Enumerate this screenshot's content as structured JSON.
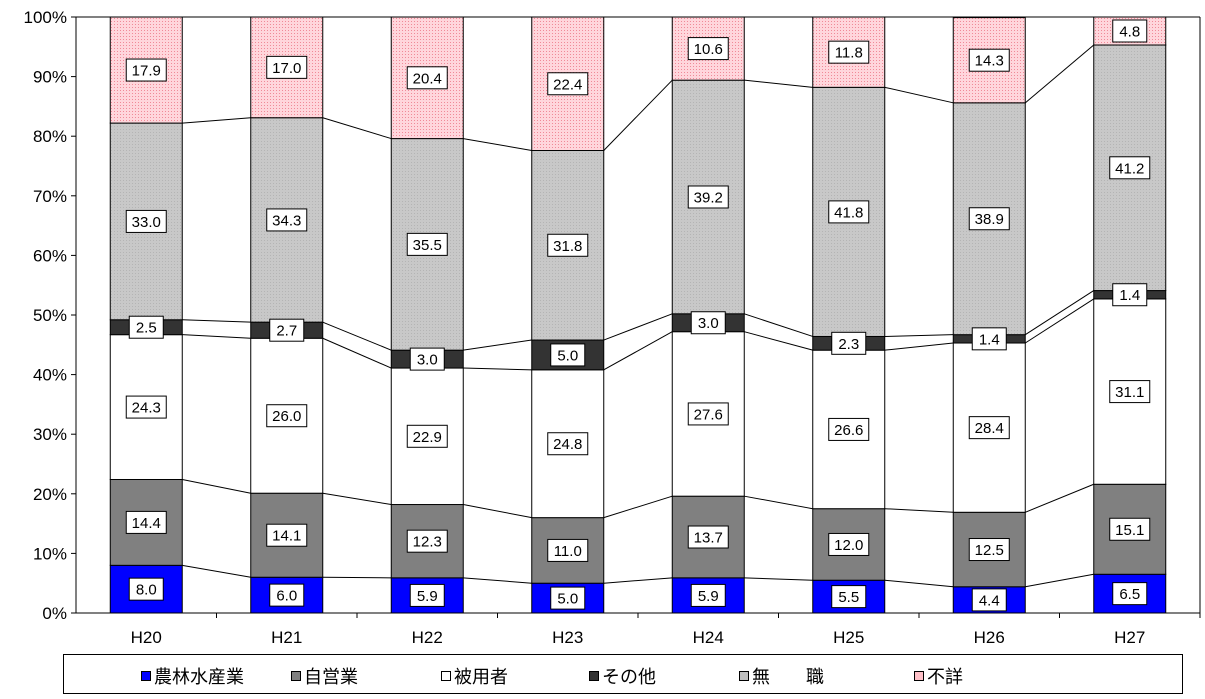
{
  "chart_data": {
    "type": "bar",
    "stacked": true,
    "percent": true,
    "categories": [
      "H20",
      "H21",
      "H22",
      "H23",
      "H24",
      "H25",
      "H26",
      "H27"
    ],
    "ylim": [
      0,
      100
    ],
    "y_ticks": [
      "0%",
      "10%",
      "20%",
      "30%",
      "40%",
      "50%",
      "60%",
      "70%",
      "80%",
      "90%",
      "100%"
    ],
    "legend_position": "bottom",
    "series": [
      {
        "name": "農林水産業",
        "color": "#0000ff",
        "pattern": "solid",
        "values": [
          8.0,
          6.0,
          5.9,
          5.0,
          5.9,
          5.5,
          4.4,
          6.5
        ],
        "labels": [
          "8.0",
          "6.0",
          "5.9",
          "5.0",
          "5.9",
          "5.5",
          "4.4",
          "6.5"
        ]
      },
      {
        "name": "自営業",
        "color": "#808080",
        "pattern": "solid",
        "values": [
          14.4,
          14.1,
          12.3,
          11.0,
          13.7,
          12.0,
          12.5,
          15.1
        ],
        "labels": [
          "14.4",
          "14.1",
          "12.3",
          "11.0",
          "13.7",
          "12.0",
          "12.5",
          "15.1"
        ]
      },
      {
        "name": "被用者",
        "color": "#ffffff",
        "pattern": "solid",
        "values": [
          24.3,
          26.0,
          22.9,
          24.8,
          27.6,
          26.6,
          28.4,
          31.1
        ],
        "labels": [
          "24.3",
          "26.0",
          "22.9",
          "24.8",
          "27.6",
          "26.6",
          "28.4",
          "31.1"
        ]
      },
      {
        "name": "その他",
        "color": "#333333",
        "pattern": "solid",
        "values": [
          2.5,
          2.7,
          3.0,
          5.0,
          3.0,
          2.3,
          1.4,
          1.4
        ],
        "labels": [
          "2.5",
          "2.7",
          "3.0",
          "5.0",
          "3.0",
          "2.3",
          "1.4",
          "1.4"
        ]
      },
      {
        "name": "無　　職",
        "color": "#c0c0c0",
        "pattern": "dots",
        "values": [
          33.0,
          34.3,
          35.5,
          31.8,
          39.2,
          41.8,
          38.9,
          41.2
        ],
        "labels": [
          "33.0",
          "34.3",
          "35.5",
          "31.8",
          "39.2",
          "41.8",
          "38.9",
          "41.2"
        ]
      },
      {
        "name": "不詳",
        "color": "#ffc0c8",
        "pattern": "grid",
        "values": [
          17.9,
          17.0,
          20.4,
          22.4,
          10.6,
          11.8,
          14.3,
          4.8
        ],
        "labels": [
          "17.9",
          "17.0",
          "20.4",
          "22.4",
          "10.6",
          "11.8",
          "14.3",
          "4.8"
        ]
      }
    ]
  },
  "legend": {
    "items": [
      {
        "symbol": "■",
        "label": "農林水産業",
        "color": "#0000ff"
      },
      {
        "symbol": "■",
        "label": "自営業",
        "color": "#808080"
      },
      {
        "symbol": "□",
        "label": "被用者",
        "color": "#ffffff"
      },
      {
        "symbol": "■",
        "label": "その他",
        "color": "#333333"
      },
      {
        "symbol": "■",
        "label": "無　　職",
        "color": "#c0c0c0"
      },
      {
        "symbol": "■",
        "label": "不詳",
        "color": "#ffc0c8"
      }
    ]
  }
}
